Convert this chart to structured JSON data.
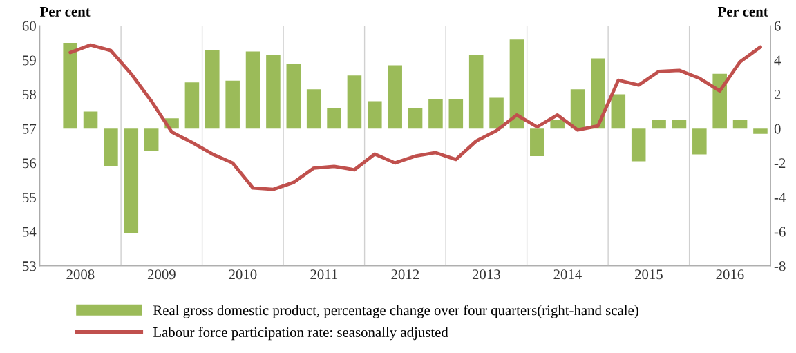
{
  "chart_data": {
    "type": "bar",
    "ylabel": "Per cent",
    "y2label": "Per cent",
    "x": [
      2008.375,
      2008.625,
      2008.875,
      2009.125,
      2009.375,
      2009.625,
      2009.875,
      2010.125,
      2010.375,
      2010.625,
      2010.875,
      2011.125,
      2011.375,
      2011.625,
      2011.875,
      2012.125,
      2012.375,
      2012.625,
      2012.875,
      2013.125,
      2013.375,
      2013.625,
      2013.875,
      2014.125,
      2014.375,
      2014.625,
      2014.875,
      2015.125,
      2015.375,
      2015.625,
      2015.875,
      2016.125,
      2016.375,
      2016.625,
      2016.875
    ],
    "xlim": [
      2008,
      2017
    ],
    "xticks": [
      {
        "value": 2008.5,
        "label": "2008"
      },
      {
        "value": 2009,
        "label": null
      },
      {
        "value": 2009.5,
        "label": "2009"
      },
      {
        "value": 2010,
        "label": null
      },
      {
        "value": 2010.5,
        "label": "2010"
      },
      {
        "value": 2011,
        "label": null
      },
      {
        "value": 2011.5,
        "label": "2011"
      },
      {
        "value": 2012,
        "label": null
      },
      {
        "value": 2012.5,
        "label": "2012"
      },
      {
        "value": 2013,
        "label": null
      },
      {
        "value": 2013.5,
        "label": "2013"
      },
      {
        "value": 2014,
        "label": null
      },
      {
        "value": 2014.5,
        "label": "2014"
      },
      {
        "value": 2015,
        "label": null
      },
      {
        "value": 2015.5,
        "label": "2015"
      },
      {
        "value": 2016,
        "label": null
      },
      {
        "value": 2016.5,
        "label": "2016"
      }
    ],
    "ylim": [
      53,
      60
    ],
    "yticks": [
      53,
      54,
      55,
      56,
      57,
      58,
      59,
      60
    ],
    "y2lim": [
      -8,
      6
    ],
    "y2ticks": [
      -8,
      -6,
      -4,
      -2,
      0,
      2,
      4,
      6
    ],
    "grid": "x",
    "legend": "bottom",
    "series": [
      {
        "name": "Real gross domestic product, percentage change over four quarters(right-hand scale)",
        "axis": "y2",
        "color": "#9bbb59",
        "values": [
          5.0,
          1.0,
          -2.2,
          -6.1,
          -1.3,
          0.6,
          2.7,
          4.6,
          2.8,
          4.5,
          4.3,
          3.8,
          2.3,
          1.2,
          3.1,
          1.6,
          3.7,
          1.2,
          1.7,
          1.7,
          4.3,
          1.8,
          5.2,
          -1.6,
          0.5,
          2.3,
          4.1,
          2.0,
          -1.9,
          0.5,
          0.5,
          -1.5,
          3.2,
          0.5,
          -0.3
        ]
      },
      {
        "name": "Labour force participation rate: seasonally adjusted",
        "type": "line",
        "color": "#c0504d",
        "values": [
          59.22,
          59.44,
          59.28,
          58.6,
          57.8,
          56.9,
          56.6,
          56.26,
          56.0,
          55.27,
          55.23,
          55.43,
          55.85,
          55.9,
          55.8,
          56.26,
          56.0,
          56.2,
          56.3,
          56.1,
          56.64,
          56.94,
          57.4,
          57.05,
          57.4,
          56.96,
          57.08,
          58.41,
          58.27,
          58.67,
          58.7,
          58.47,
          58.1,
          58.95,
          59.38
        ]
      }
    ]
  }
}
